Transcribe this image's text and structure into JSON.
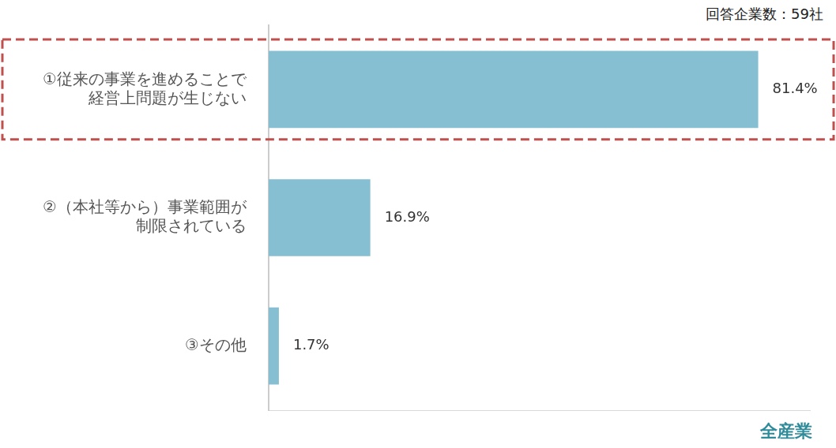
{
  "chart_data": {
    "type": "bar",
    "orientation": "horizontal",
    "annotations": [
      "回答企業数：59社",
      "全産業"
    ],
    "categories": [
      "①従来の事業を進めることで経営上問題が生じない",
      "②（本社等から）事業範囲が制限されている",
      "③その他"
    ],
    "values": [
      81.4,
      16.9,
      1.7
    ],
    "value_labels": [
      "81.4%",
      "16.9%",
      "1.7%"
    ],
    "color": "#86bfd1",
    "xlim": [
      0,
      90
    ],
    "data_labels": true,
    "tick_labels": "y",
    "grid": false
  }
}
